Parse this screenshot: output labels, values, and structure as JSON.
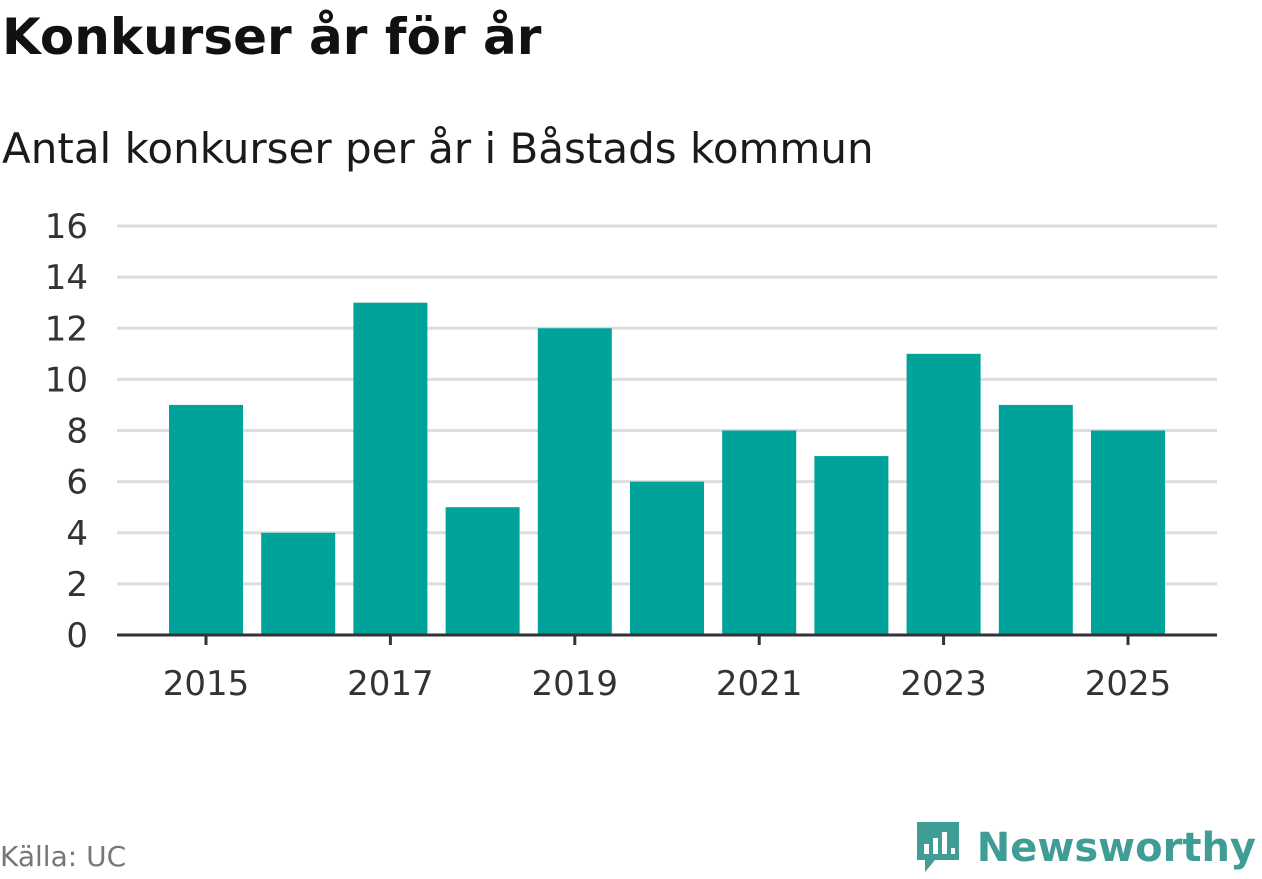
{
  "header": {
    "title": "Konkurser år för år",
    "subtitle": "Antal konkurser per år i Båstads kommun"
  },
  "footer": {
    "source": "Källa: UC",
    "brand": "Newsworthy",
    "brand_icon": "bar-chart-speech-bubble-icon",
    "brand_color": "#3f9d96"
  },
  "chart_data": {
    "type": "bar",
    "title": "Konkurser år för år",
    "subtitle": "Antal konkurser per år i Båstads kommun",
    "categories": [
      2015,
      2016,
      2017,
      2018,
      2019,
      2020,
      2021,
      2022,
      2023,
      2024,
      2025
    ],
    "values": [
      9,
      4,
      13,
      5,
      12,
      6,
      8,
      7,
      11,
      9,
      8
    ],
    "xticks": [
      2015,
      2017,
      2019,
      2021,
      2023,
      2025
    ],
    "yticks": [
      0,
      2,
      4,
      6,
      8,
      10,
      12,
      14,
      16
    ],
    "ylim": [
      0,
      16
    ],
    "xlabel": "",
    "ylabel": "",
    "grid": true,
    "bar_color": "#00a39a",
    "grid_color": "#dddddd",
    "axis_color": "#333333"
  }
}
